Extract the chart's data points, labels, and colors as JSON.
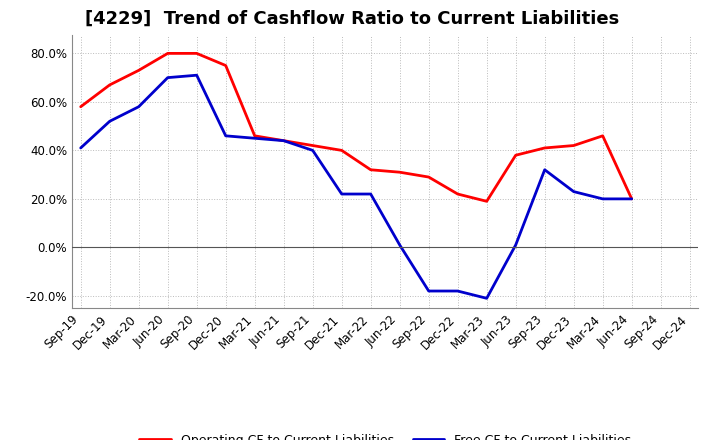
{
  "title": "[4229]  Trend of Cashflow Ratio to Current Liabilities",
  "x_labels": [
    "Sep-19",
    "Dec-19",
    "Mar-20",
    "Jun-20",
    "Sep-20",
    "Dec-20",
    "Mar-21",
    "Jun-21",
    "Sep-21",
    "Dec-21",
    "Mar-22",
    "Jun-22",
    "Sep-22",
    "Dec-22",
    "Mar-23",
    "Jun-23",
    "Sep-23",
    "Dec-23",
    "Mar-24",
    "Jun-24",
    "Sep-24",
    "Dec-24"
  ],
  "operating_cf": [
    0.58,
    0.67,
    0.73,
    0.8,
    0.8,
    0.75,
    0.46,
    0.44,
    0.42,
    0.4,
    0.32,
    0.31,
    0.29,
    0.22,
    0.19,
    0.38,
    0.41,
    0.42,
    0.46,
    0.2,
    null,
    null
  ],
  "free_cf": [
    0.41,
    0.52,
    0.58,
    0.7,
    0.71,
    0.46,
    0.45,
    0.44,
    0.4,
    0.22,
    0.22,
    0.01,
    -0.18,
    -0.18,
    -0.21,
    0.01,
    0.32,
    0.23,
    0.2,
    0.2,
    null,
    null
  ],
  "operating_color": "#FF0000",
  "free_color": "#0000CC",
  "ylim": [
    -0.25,
    0.875
  ],
  "yticks": [
    -0.2,
    0.0,
    0.2,
    0.4,
    0.6,
    0.8
  ],
  "background_color": "#FFFFFF",
  "plot_bg_color": "#FFFFFF",
  "grid_color": "#AAAAAA",
  "legend_op": "Operating CF to Current Liabilities",
  "legend_free": "Free CF to Current Liabilities",
  "title_fontsize": 13,
  "tick_fontsize": 8.5,
  "legend_fontsize": 9
}
